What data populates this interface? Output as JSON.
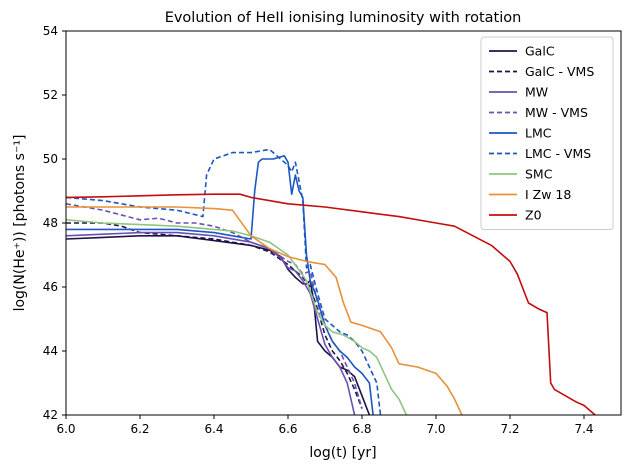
{
  "chart_data": {
    "type": "line",
    "title": "Evolution of HeII ionising luminosity with rotation",
    "xlabel": "log(t) [yr]",
    "ylabel": "log(N(He⁺)) [photons s⁻¹]",
    "xlim": [
      6.0,
      7.5
    ],
    "ylim": [
      42,
      54
    ],
    "xticks": [
      "6.0",
      "6.2",
      "6.4",
      "6.6",
      "6.8",
      "7.0",
      "7.2",
      "7.4"
    ],
    "yticks": [
      "42",
      "44",
      "46",
      "48",
      "50",
      "52",
      "54"
    ],
    "legend_position": "top-right",
    "series": [
      {
        "name": "GalC",
        "color": "#1f1446",
        "dash": "solid",
        "x": [
          6.0,
          6.1,
          6.2,
          6.3,
          6.4,
          6.5,
          6.55,
          6.58,
          6.6,
          6.62,
          6.64,
          6.65,
          6.66,
          6.67,
          6.68,
          6.7,
          6.72,
          6.74,
          6.76,
          6.78,
          6.8,
          6.82
        ],
        "y": [
          47.5,
          47.55,
          47.6,
          47.6,
          47.45,
          47.3,
          47.15,
          46.95,
          46.55,
          46.3,
          46.1,
          46.1,
          46.2,
          45.5,
          44.3,
          44.0,
          43.8,
          43.5,
          43.4,
          43.2,
          42.6,
          42.0
        ]
      },
      {
        "name": "GalC - VMS",
        "color": "#1f1446",
        "dash": "dashed",
        "x": [
          6.0,
          6.1,
          6.15,
          6.2,
          6.3,
          6.4,
          6.5,
          6.55,
          6.6,
          6.64,
          6.66,
          6.68,
          6.7,
          6.72,
          6.74,
          6.76,
          6.78,
          6.8
        ],
        "y": [
          48.0,
          48.0,
          47.9,
          47.7,
          47.6,
          47.5,
          47.3,
          47.1,
          46.7,
          46.3,
          46.0,
          45.3,
          44.5,
          44.0,
          43.7,
          43.3,
          42.8,
          42.2
        ]
      },
      {
        "name": "MW",
        "color": "#6a4fb5",
        "dash": "solid",
        "x": [
          6.0,
          6.1,
          6.2,
          6.3,
          6.4,
          6.5,
          6.55,
          6.58,
          6.6,
          6.62,
          6.64,
          6.66,
          6.68,
          6.7,
          6.72,
          6.74,
          6.76,
          6.78
        ],
        "y": [
          47.6,
          47.65,
          47.7,
          47.7,
          47.6,
          47.4,
          47.2,
          46.9,
          46.6,
          46.5,
          46.2,
          45.8,
          45.0,
          44.2,
          43.8,
          43.5,
          43.0,
          42.0
        ]
      },
      {
        "name": "MW - VMS",
        "color": "#6a4fb5",
        "dash": "dashed",
        "x": [
          6.0,
          6.1,
          6.2,
          6.25,
          6.3,
          6.35,
          6.4,
          6.45,
          6.5,
          6.55,
          6.6,
          6.62,
          6.64,
          6.66,
          6.68,
          6.7,
          6.72,
          6.74,
          6.76,
          6.78,
          6.8
        ],
        "y": [
          48.6,
          48.4,
          48.1,
          48.15,
          48.0,
          48.0,
          47.9,
          47.7,
          47.4,
          47.2,
          46.8,
          46.7,
          46.4,
          46.5,
          45.5,
          44.8,
          44.3,
          44.0,
          43.5,
          43.0,
          42.2
        ]
      },
      {
        "name": "LMC",
        "color": "#1c57c4",
        "dash": "solid",
        "x": [
          6.0,
          6.2,
          6.3,
          6.4,
          6.45,
          6.5,
          6.51,
          6.52,
          6.53,
          6.56,
          6.59,
          6.6,
          6.61,
          6.62,
          6.63,
          6.64,
          6.65,
          6.66,
          6.68,
          6.7,
          6.72,
          6.74,
          6.76,
          6.78,
          6.8,
          6.82,
          6.83
        ],
        "y": [
          47.8,
          47.8,
          47.8,
          47.7,
          47.6,
          47.5,
          49.0,
          49.9,
          50.0,
          50.0,
          50.1,
          49.9,
          48.9,
          49.5,
          49.0,
          48.8,
          47.0,
          46.2,
          45.6,
          44.8,
          44.3,
          44.0,
          43.8,
          43.5,
          43.3,
          43.0,
          42.0
        ]
      },
      {
        "name": "LMC - VMS",
        "color": "#1c57c4",
        "dash": "dashed",
        "x": [
          6.0,
          6.1,
          6.2,
          6.3,
          6.37,
          6.38,
          6.4,
          6.45,
          6.5,
          6.55,
          6.58,
          6.6,
          6.61,
          6.62,
          6.64,
          6.65,
          6.66,
          6.68,
          6.7,
          6.72,
          6.74,
          6.76,
          6.78,
          6.8,
          6.82,
          6.84,
          6.85
        ],
        "y": [
          48.8,
          48.7,
          48.5,
          48.4,
          48.2,
          49.5,
          50.0,
          50.2,
          50.2,
          50.3,
          50.0,
          49.8,
          49.6,
          49.9,
          48.7,
          46.6,
          46.7,
          45.8,
          45.0,
          44.8,
          44.6,
          44.5,
          44.3,
          44.0,
          43.5,
          43.0,
          42.0
        ]
      },
      {
        "name": "SMC",
        "color": "#8fc57f",
        "dash": "solid",
        "x": [
          6.0,
          6.1,
          6.2,
          6.3,
          6.4,
          6.45,
          6.5,
          6.55,
          6.6,
          6.65,
          6.68,
          6.7,
          6.72,
          6.75,
          6.78,
          6.8,
          6.82,
          6.84,
          6.86,
          6.88,
          6.9,
          6.92
        ],
        "y": [
          48.1,
          48.0,
          47.95,
          47.9,
          47.8,
          47.75,
          47.6,
          47.4,
          47.0,
          46.2,
          45.2,
          44.8,
          44.6,
          44.5,
          44.3,
          44.1,
          44.0,
          43.8,
          43.3,
          42.8,
          42.5,
          42.0
        ]
      },
      {
        "name": "I Zw 18",
        "color": "#e8913a",
        "dash": "solid",
        "x": [
          6.0,
          6.1,
          6.2,
          6.3,
          6.4,
          6.45,
          6.5,
          6.55,
          6.6,
          6.65,
          6.7,
          6.73,
          6.75,
          6.77,
          6.8,
          6.85,
          6.88,
          6.9,
          6.95,
          7.0,
          7.03,
          7.05,
          7.07
        ],
        "y": [
          48.5,
          48.5,
          48.5,
          48.5,
          48.45,
          48.4,
          47.6,
          47.2,
          46.95,
          46.8,
          46.7,
          46.3,
          45.5,
          44.9,
          44.8,
          44.6,
          44.1,
          43.6,
          43.5,
          43.3,
          42.9,
          42.5,
          42.0
        ]
      },
      {
        "name": "Z0",
        "color": "#c40d0d",
        "dash": "solid",
        "x": [
          6.0,
          6.1,
          6.2,
          6.3,
          6.4,
          6.47,
          6.5,
          6.6,
          6.7,
          6.8,
          6.9,
          7.0,
          7.05,
          7.1,
          7.15,
          7.2,
          7.22,
          7.25,
          7.28,
          7.3,
          7.31,
          7.32,
          7.35,
          7.38,
          7.4,
          7.43
        ],
        "y": [
          48.8,
          48.82,
          48.85,
          48.88,
          48.9,
          48.9,
          48.8,
          48.6,
          48.5,
          48.35,
          48.2,
          48.0,
          47.9,
          47.6,
          47.3,
          46.8,
          46.4,
          45.5,
          45.3,
          45.2,
          43.0,
          42.8,
          42.6,
          42.4,
          42.3,
          42.0
        ]
      }
    ]
  }
}
